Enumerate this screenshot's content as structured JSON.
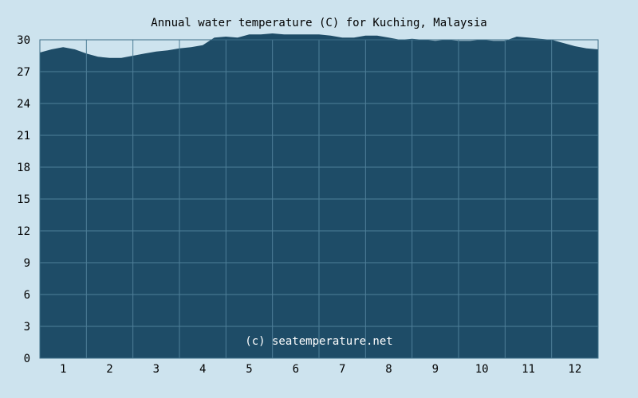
{
  "chart_data": {
    "type": "area",
    "title": "Annual water temperature (C) for Kuching, Malaysia",
    "xlabel": "",
    "ylabel": "",
    "xlim": [
      0.5,
      12.5
    ],
    "ylim": [
      0,
      30
    ],
    "x_ticks": [
      1,
      2,
      3,
      4,
      5,
      6,
      7,
      8,
      9,
      10,
      11,
      12
    ],
    "x_tick_labels": [
      "1",
      "2",
      "3",
      "4",
      "5",
      "6",
      "7",
      "8",
      "9",
      "10",
      "11",
      "12"
    ],
    "y_ticks": [
      0,
      3,
      6,
      9,
      12,
      15,
      18,
      21,
      24,
      27,
      30
    ],
    "y_tick_labels": [
      "0",
      "3",
      "6",
      "9",
      "12",
      "15",
      "18",
      "21",
      "24",
      "27",
      "30"
    ],
    "grid": true,
    "series": [
      {
        "x": [
          0.5,
          0.75,
          1.0,
          1.25,
          1.5,
          1.75,
          2.0,
          2.25,
          2.5,
          2.75,
          3.0,
          3.25,
          3.5,
          3.75,
          4.0,
          4.25,
          4.5,
          4.75,
          5.0,
          5.25,
          5.5,
          5.75,
          6.0,
          6.25,
          6.5,
          6.75,
          7.0,
          7.25,
          7.5,
          7.75,
          8.0,
          8.25,
          8.5,
          8.75,
          9.0,
          9.25,
          9.5,
          9.75,
          10.0,
          10.25,
          10.5,
          10.75,
          11.0,
          11.25,
          11.5,
          11.75,
          12.0,
          12.25,
          12.5
        ],
        "values": [
          28.8,
          29.1,
          29.3,
          29.1,
          28.7,
          28.4,
          28.3,
          28.3,
          28.5,
          28.7,
          28.9,
          29.0,
          29.2,
          29.3,
          29.5,
          30.2,
          30.3,
          30.2,
          30.5,
          30.5,
          30.6,
          30.5,
          30.5,
          30.5,
          30.5,
          30.4,
          30.2,
          30.2,
          30.4,
          30.4,
          30.2,
          30.0,
          30.1,
          30.0,
          29.9,
          30.0,
          29.9,
          29.9,
          30.0,
          29.9,
          29.9,
          30.3,
          30.2,
          30.1,
          30.0,
          29.7,
          29.4,
          29.2,
          29.1
        ]
      }
    ],
    "annotation": "(c) seatemperature.net",
    "colors": {
      "background": "#cde3ee",
      "fill": "#1e4c67",
      "grid": "#4e7f98",
      "border": "#3f6f88",
      "text": "#000000",
      "watermark": "#ffffff"
    }
  }
}
